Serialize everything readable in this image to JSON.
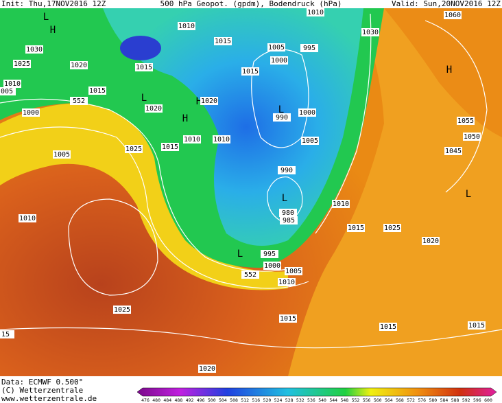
{
  "header": {
    "init": "Init: Thu,17NOV2016 12Z",
    "title": "500 hPa Geopot. (gpdm), Bodendruck (hPa)",
    "valid": "Valid: Sun,20NOV2016 12Z"
  },
  "footer": {
    "data": "Data: ECMWF  0.500°",
    "copyright": "(C) Wetterzentrale",
    "url": "www.wetterzentrale.de"
  },
  "legend": {
    "labels": [
      "476",
      "480",
      "484",
      "488",
      "492",
      "496",
      "500",
      "504",
      "508",
      "512",
      "516",
      "520",
      "524",
      "528",
      "532",
      "536",
      "540",
      "544",
      "548",
      "552",
      "556",
      "560",
      "564",
      "568",
      "572",
      "576",
      "580",
      "584",
      "588",
      "592",
      "596",
      "600"
    ]
  },
  "map": {
    "labels": [
      "L",
      "H",
      "1030",
      "1025",
      "1020",
      "1015",
      "1010",
      "1015",
      "1015",
      "1005",
      "995",
      "1000",
      "1010",
      "1030",
      "1060",
      "H",
      "1010",
      "005",
      "1015",
      "L",
      "1020",
      "H",
      "1020",
      "H",
      "1000",
      "552",
      "L",
      "990",
      "1000",
      "1005",
      "1055",
      "1050",
      "1045",
      "1005",
      "1025",
      "1015",
      "1010",
      "1010",
      "990",
      "L",
      "980",
      "985",
      "1010",
      "L",
      "1010",
      "1015",
      "1025",
      "1020",
      "L",
      "995",
      "1000",
      "1005",
      "552",
      "1010",
      "1025",
      "1015",
      "1015",
      "1015",
      "15",
      "1020"
    ]
  }
}
